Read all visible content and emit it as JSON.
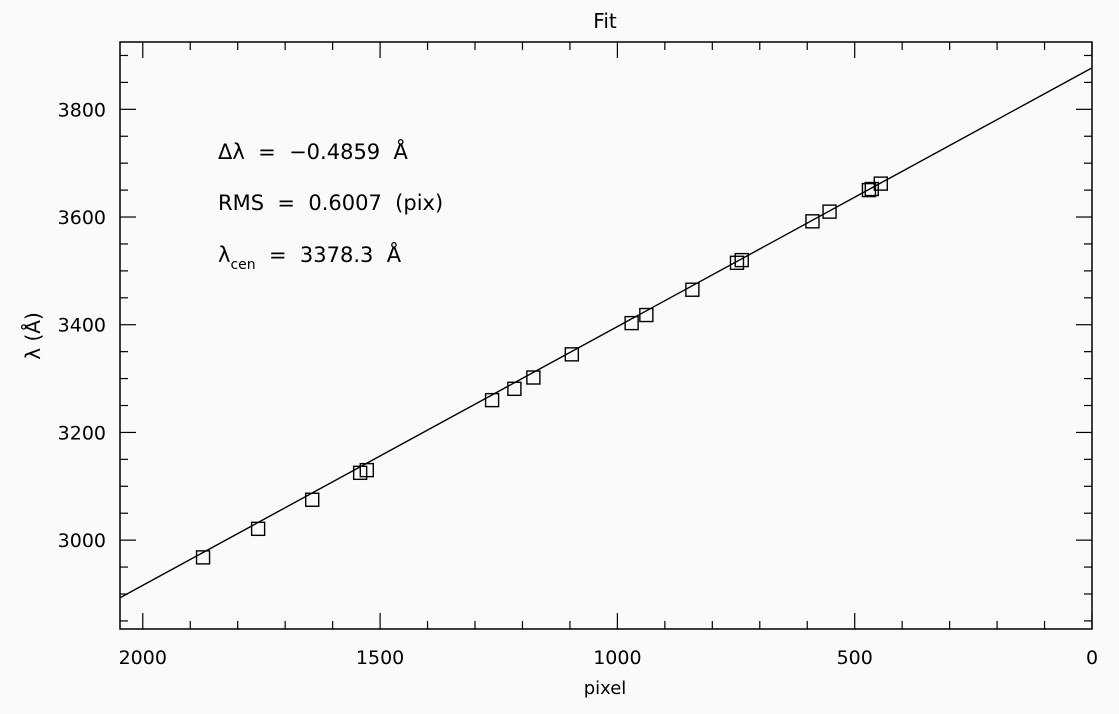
{
  "chart_data": {
    "type": "scatter",
    "title": "Fit",
    "xlabel": "pixel",
    "ylabel": "λ (Å)",
    "xlim": [
      2048,
      0
    ],
    "ylim": [
      2835,
      3925
    ],
    "x_ticks": [
      2000,
      1500,
      1000,
      500,
      0
    ],
    "y_ticks": [
      3000,
      3200,
      3400,
      3600,
      3800
    ],
    "grid": false,
    "annotations": {
      "delta_lambda": "Δλ  =  −0.4859  Å",
      "rms": "RMS  =  0.6007  (pix)",
      "lambda_cen_symbol": "λ",
      "lambda_cen_sub": "cen",
      "lambda_cen_value": "  =  3378.3  Å"
    },
    "series": [
      {
        "type": "scatter",
        "marker": "square",
        "points": [
          [
            1873,
            2968
          ],
          [
            1757,
            3021
          ],
          [
            1643,
            3075
          ],
          [
            1542,
            3125
          ],
          [
            1528,
            3130
          ],
          [
            1264,
            3260
          ],
          [
            1217,
            3281
          ],
          [
            1177,
            3302
          ],
          [
            1096,
            3345
          ],
          [
            970,
            3403
          ],
          [
            939,
            3418
          ],
          [
            842,
            3465
          ],
          [
            748,
            3515
          ],
          [
            738,
            3520
          ],
          [
            589,
            3592
          ],
          [
            553,
            3610
          ],
          [
            470,
            3650
          ],
          [
            464,
            3652
          ],
          [
            445,
            3662
          ]
        ]
      },
      {
        "type": "line",
        "points": [
          [
            2048,
            2893
          ],
          [
            0,
            3877
          ]
        ]
      }
    ]
  }
}
